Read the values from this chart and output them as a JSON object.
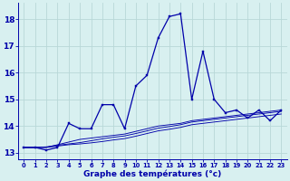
{
  "xlabel": "Graphe des températures (°c)",
  "x": [
    0,
    1,
    2,
    3,
    4,
    5,
    6,
    7,
    8,
    9,
    10,
    11,
    12,
    13,
    14,
    15,
    16,
    17,
    18,
    19,
    20,
    21,
    22,
    23
  ],
  "temp_main": [
    13.2,
    13.2,
    13.1,
    13.2,
    14.1,
    13.9,
    13.9,
    14.8,
    14.8,
    13.9,
    15.5,
    15.9,
    17.3,
    18.1,
    18.2,
    15.0,
    16.8,
    15.0,
    14.5,
    14.6,
    14.3,
    14.6,
    14.2,
    14.6
  ],
  "temp_line2": [
    13.2,
    13.2,
    13.2,
    13.3,
    13.4,
    13.5,
    13.55,
    13.6,
    13.65,
    13.7,
    13.8,
    13.9,
    14.0,
    14.05,
    14.1,
    14.2,
    14.25,
    14.3,
    14.35,
    14.4,
    14.45,
    14.5,
    14.55,
    14.6
  ],
  "temp_line3": [
    13.2,
    13.2,
    13.22,
    13.28,
    13.33,
    13.38,
    13.45,
    13.52,
    13.58,
    13.63,
    13.72,
    13.82,
    13.92,
    13.98,
    14.05,
    14.15,
    14.2,
    14.25,
    14.3,
    14.35,
    14.4,
    14.45,
    14.5,
    14.55
  ],
  "temp_line4": [
    13.2,
    13.2,
    13.2,
    13.25,
    13.3,
    13.33,
    13.37,
    13.42,
    13.48,
    13.53,
    13.62,
    13.72,
    13.82,
    13.88,
    13.95,
    14.05,
    14.1,
    14.15,
    14.2,
    14.25,
    14.3,
    14.35,
    14.4,
    14.45
  ],
  "line_color": "#0000aa",
  "bg_color": "#d8f0f0",
  "grid_color": "#b8d8d8",
  "ylim": [
    12.75,
    18.6
  ],
  "xlim": [
    -0.5,
    23.5
  ],
  "yticks": [
    13,
    14,
    15,
    16,
    17,
    18
  ],
  "xticks": [
    0,
    1,
    2,
    3,
    4,
    5,
    6,
    7,
    8,
    9,
    10,
    11,
    12,
    13,
    14,
    15,
    16,
    17,
    18,
    19,
    20,
    21,
    22,
    23
  ],
  "marker_size": 2.0,
  "linewidth_main": 0.9,
  "linewidth_avg": 0.65
}
